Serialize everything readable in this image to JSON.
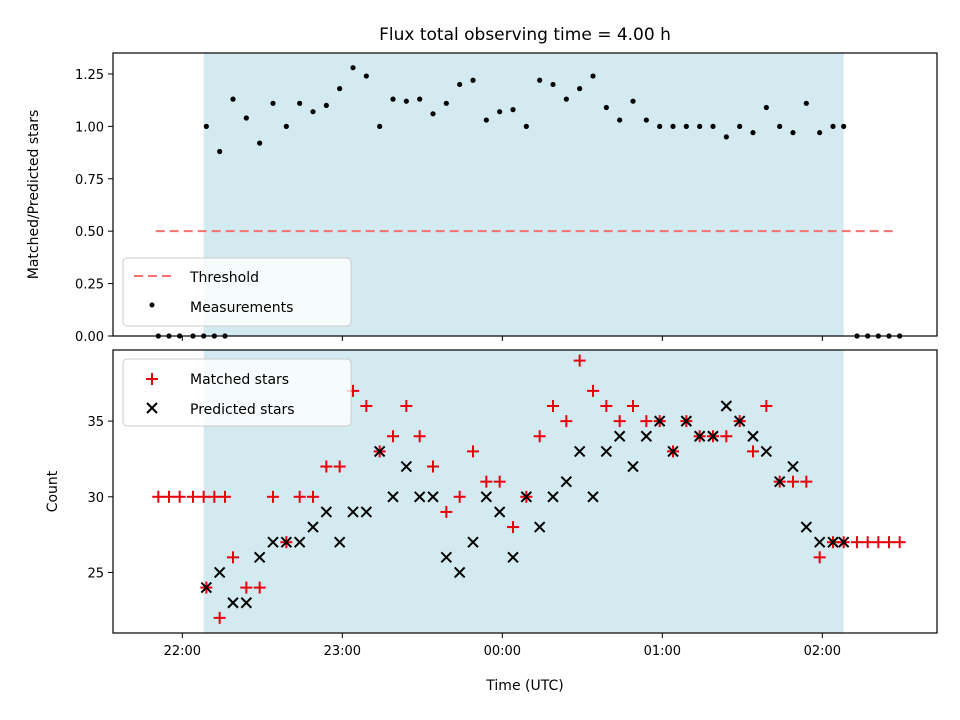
{
  "chart_data": [
    {
      "type": "scatter",
      "title": "Flux total observing time = 4.00 h",
      "xlabel": "",
      "ylabel": "Matched/Predicted stars",
      "xlim": [
        "21:34",
        "02:43"
      ],
      "ylim": [
        0,
        1.35
      ],
      "yticks": [
        0.0,
        0.25,
        0.5,
        0.75,
        1.0,
        1.25
      ],
      "ytick_labels": [
        "0.00",
        "0.25",
        "0.50",
        "0.75",
        "1.00",
        "1.25"
      ],
      "shaded_interval": [
        "22:08",
        "02:08"
      ],
      "shade_color": "#d3eaf0",
      "threshold": {
        "name": "Threshold",
        "y": 0.5,
        "x_range": [
          "21:50",
          "02:28"
        ],
        "color": "#f4726f"
      },
      "legend": {
        "placement": "lower-left",
        "entries": [
          "Threshold",
          "Measurements"
        ]
      },
      "series": [
        {
          "name": "Measurements",
          "marker": "dot",
          "color": "#000000",
          "points": [
            [
              "21:51",
              0
            ],
            [
              "21:55",
              0
            ],
            [
              "21:59",
              0
            ],
            [
              "22:04",
              0
            ],
            [
              "22:08",
              0
            ],
            [
              "22:12",
              0
            ],
            [
              "22:16",
              0
            ],
            [
              "22:09",
              1.0
            ],
            [
              "22:14",
              0.88
            ],
            [
              "22:19",
              1.13
            ],
            [
              "22:24",
              1.04
            ],
            [
              "22:29",
              0.92
            ],
            [
              "22:34",
              1.11
            ],
            [
              "22:39",
              1.0
            ],
            [
              "22:44",
              1.11
            ],
            [
              "22:49",
              1.07
            ],
            [
              "22:54",
              1.1
            ],
            [
              "22:59",
              1.18
            ],
            [
              "23:04",
              1.28
            ],
            [
              "23:09",
              1.24
            ],
            [
              "23:14",
              1.0
            ],
            [
              "23:19",
              1.13
            ],
            [
              "23:24",
              1.12
            ],
            [
              "23:29",
              1.13
            ],
            [
              "23:34",
              1.06
            ],
            [
              "23:39",
              1.11
            ],
            [
              "23:44",
              1.2
            ],
            [
              "23:49",
              1.22
            ],
            [
              "23:54",
              1.03
            ],
            [
              "23:59",
              1.07
            ],
            [
              "00:04",
              1.08
            ],
            [
              "00:09",
              1.0
            ],
            [
              "00:14",
              1.22
            ],
            [
              "00:19",
              1.2
            ],
            [
              "00:24",
              1.13
            ],
            [
              "00:29",
              1.18
            ],
            [
              "00:34",
              1.24
            ],
            [
              "00:39",
              1.09
            ],
            [
              "00:44",
              1.03
            ],
            [
              "00:49",
              1.12
            ],
            [
              "00:54",
              1.03
            ],
            [
              "00:59",
              1.0
            ],
            [
              "01:04",
              1.0
            ],
            [
              "01:09",
              1.0
            ],
            [
              "01:14",
              1.0
            ],
            [
              "01:19",
              1.0
            ],
            [
              "01:24",
              0.95
            ],
            [
              "01:29",
              1.0
            ],
            [
              "01:34",
              0.97
            ],
            [
              "01:39",
              1.09
            ],
            [
              "01:44",
              1.0
            ],
            [
              "01:49",
              0.97
            ],
            [
              "01:54",
              1.11
            ],
            [
              "01:59",
              0.97
            ],
            [
              "02:04",
              1.0
            ],
            [
              "02:08",
              1.0
            ],
            [
              "02:13",
              0
            ],
            [
              "02:17",
              0
            ],
            [
              "02:21",
              0
            ],
            [
              "02:25",
              0
            ],
            [
              "02:29",
              0
            ]
          ]
        }
      ]
    },
    {
      "type": "scatter",
      "title": "",
      "xlabel": "Time (UTC)",
      "ylabel": "Count",
      "xlim": [
        "21:34",
        "02:43"
      ],
      "ylim": [
        21.0,
        39.7
      ],
      "yticks": [
        25,
        30,
        35
      ],
      "ytick_labels": [
        "25",
        "30",
        "35"
      ],
      "xticks": [
        "22:00",
        "23:00",
        "00:00",
        "01:00",
        "02:00"
      ],
      "xtick_labels": [
        "22:00",
        "23:00",
        "00:00",
        "01:00",
        "02:00"
      ],
      "shaded_interval": [
        "22:08",
        "02:08"
      ],
      "shade_color": "#d3eaf0",
      "legend": {
        "placement": "upper-left",
        "entries": [
          "Matched stars",
          "Predicted stars"
        ]
      },
      "series": [
        {
          "name": "Matched stars",
          "marker": "plus",
          "color": "#e8000b",
          "points": [
            [
              "21:51",
              30
            ],
            [
              "21:55",
              30
            ],
            [
              "21:59",
              30
            ],
            [
              "22:04",
              30
            ],
            [
              "22:08",
              30
            ],
            [
              "22:12",
              30
            ],
            [
              "22:16",
              30
            ],
            [
              "22:09",
              24
            ],
            [
              "22:14",
              22
            ],
            [
              "22:19",
              26
            ],
            [
              "22:24",
              24
            ],
            [
              "22:29",
              24
            ],
            [
              "22:34",
              30
            ],
            [
              "22:39",
              27
            ],
            [
              "22:44",
              30
            ],
            [
              "22:49",
              30
            ],
            [
              "22:54",
              32
            ],
            [
              "22:59",
              32
            ],
            [
              "23:04",
              37
            ],
            [
              "23:09",
              36
            ],
            [
              "23:14",
              33
            ],
            [
              "23:19",
              34
            ],
            [
              "23:24",
              36
            ],
            [
              "23:29",
              34
            ],
            [
              "23:34",
              32
            ],
            [
              "23:39",
              29
            ],
            [
              "23:44",
              30
            ],
            [
              "23:49",
              33
            ],
            [
              "23:54",
              31
            ],
            [
              "23:59",
              31
            ],
            [
              "00:04",
              28
            ],
            [
              "00:09",
              30
            ],
            [
              "00:14",
              34
            ],
            [
              "00:19",
              36
            ],
            [
              "00:24",
              35
            ],
            [
              "00:29",
              39
            ],
            [
              "00:34",
              37
            ],
            [
              "00:39",
              36
            ],
            [
              "00:44",
              35
            ],
            [
              "00:49",
              36
            ],
            [
              "00:54",
              35
            ],
            [
              "00:59",
              35
            ],
            [
              "01:04",
              33
            ],
            [
              "01:09",
              35
            ],
            [
              "01:14",
              34
            ],
            [
              "01:19",
              34
            ],
            [
              "01:24",
              34
            ],
            [
              "01:29",
              35
            ],
            [
              "01:34",
              33
            ],
            [
              "01:39",
              36
            ],
            [
              "01:44",
              31
            ],
            [
              "01:49",
              31
            ],
            [
              "01:54",
              31
            ],
            [
              "01:59",
              26
            ],
            [
              "02:04",
              27
            ],
            [
              "02:08",
              27
            ],
            [
              "02:13",
              27
            ],
            [
              "02:17",
              27
            ],
            [
              "02:21",
              27
            ],
            [
              "02:25",
              27
            ],
            [
              "02:29",
              27
            ]
          ]
        },
        {
          "name": "Predicted stars",
          "marker": "x",
          "color": "#000000",
          "points": [
            [
              "22:09",
              24
            ],
            [
              "22:14",
              25
            ],
            [
              "22:19",
              23
            ],
            [
              "22:24",
              23
            ],
            [
              "22:29",
              26
            ],
            [
              "22:34",
              27
            ],
            [
              "22:39",
              27
            ],
            [
              "22:44",
              27
            ],
            [
              "22:49",
              28
            ],
            [
              "22:54",
              29
            ],
            [
              "22:59",
              27
            ],
            [
              "23:04",
              29
            ],
            [
              "23:09",
              29
            ],
            [
              "23:14",
              33
            ],
            [
              "23:19",
              30
            ],
            [
              "23:24",
              32
            ],
            [
              "23:29",
              30
            ],
            [
              "23:34",
              30
            ],
            [
              "23:39",
              26
            ],
            [
              "23:44",
              25
            ],
            [
              "23:49",
              27
            ],
            [
              "23:54",
              30
            ],
            [
              "23:59",
              29
            ],
            [
              "00:04",
              26
            ],
            [
              "00:09",
              30
            ],
            [
              "00:14",
              28
            ],
            [
              "00:19",
              30
            ],
            [
              "00:24",
              31
            ],
            [
              "00:29",
              33
            ],
            [
              "00:34",
              30
            ],
            [
              "00:39",
              33
            ],
            [
              "00:44",
              34
            ],
            [
              "00:49",
              32
            ],
            [
              "00:54",
              34
            ],
            [
              "00:59",
              35
            ],
            [
              "01:04",
              33
            ],
            [
              "01:09",
              35
            ],
            [
              "01:14",
              34
            ],
            [
              "01:19",
              34
            ],
            [
              "01:24",
              36
            ],
            [
              "01:29",
              35
            ],
            [
              "01:34",
              34
            ],
            [
              "01:39",
              33
            ],
            [
              "01:44",
              31
            ],
            [
              "01:49",
              32
            ],
            [
              "01:54",
              28
            ],
            [
              "01:59",
              27
            ],
            [
              "02:04",
              27
            ],
            [
              "02:08",
              27
            ]
          ]
        }
      ]
    }
  ]
}
